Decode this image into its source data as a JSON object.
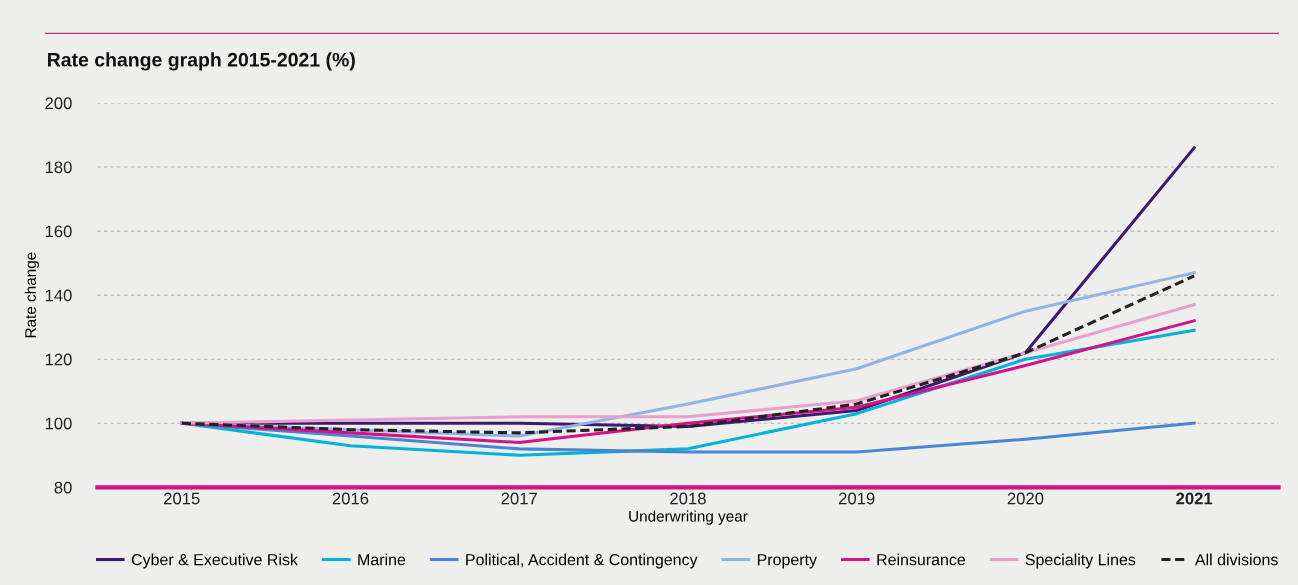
{
  "chart_data": {
    "type": "line",
    "title": "Rate change graph 2015-2021 (%)",
    "xlabel": "Underwriting year",
    "ylabel": "Rate change",
    "categories": [
      "2015",
      "2016",
      "2017",
      "2018",
      "2019",
      "2020",
      "2021"
    ],
    "series": [
      {
        "name": "Cyber & Executive Risk",
        "color": "#3d1a6e",
        "values": [
          100,
          100,
          100,
          99,
          104,
          122,
          186
        ]
      },
      {
        "name": "Marine",
        "color": "#00b4d8",
        "values": [
          100,
          93,
          90,
          92,
          103,
          120,
          129
        ]
      },
      {
        "name": "Political, Accident & Contingency",
        "color": "#4a86d0",
        "values": [
          100,
          96,
          92,
          91,
          91,
          95,
          100
        ]
      },
      {
        "name": "Property",
        "color": "#90b4e4",
        "values": [
          100,
          98,
          96,
          106,
          117,
          135,
          147
        ]
      },
      {
        "name": "Reinsurance",
        "color": "#d4128a",
        "values": [
          100,
          97,
          94,
          100,
          105,
          118,
          132
        ]
      },
      {
        "name": "Speciality Lines",
        "color": "#e8a0cc",
        "values": [
          100,
          101,
          102,
          102,
          107,
          122,
          137
        ]
      },
      {
        "name": "All divisions",
        "color": "#222222",
        "values": [
          100,
          98,
          97,
          99,
          106,
          122,
          146
        ],
        "line_style": "dashed"
      }
    ],
    "ylim": [
      80,
      200
    ],
    "yticks": [
      80,
      100,
      120,
      140,
      160,
      180,
      200
    ],
    "grid": "y",
    "legend": "bottom",
    "marker": "none",
    "line_style": "solid"
  }
}
